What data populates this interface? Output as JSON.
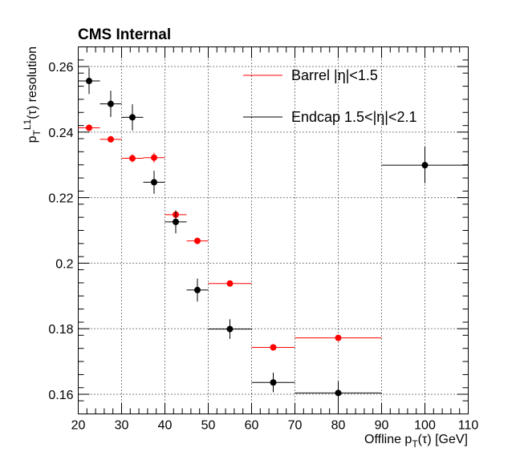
{
  "chart_data": {
    "type": "scatter",
    "title": "CMS Internal",
    "xlabel": "Offline p_T(τ) [GeV]",
    "ylabel": "p_T^L1(τ) resolution",
    "xlim": [
      20,
      110
    ],
    "ylim": [
      0.154,
      0.266
    ],
    "x_ticks": [
      20,
      30,
      40,
      50,
      60,
      70,
      80,
      90,
      100,
      110
    ],
    "y_ticks": [
      0.16,
      0.18,
      0.2,
      0.22,
      0.24,
      0.26
    ],
    "x_tick_labels": [
      "20",
      "30",
      "40",
      "50",
      "60",
      "70",
      "80",
      "90",
      "100",
      "110"
    ],
    "y_tick_labels": [
      "0.16",
      "0.18",
      "0.2",
      "0.22",
      "0.24",
      "0.26"
    ],
    "grid": true,
    "legend_position": "top-right",
    "series": [
      {
        "name": "Barrel |η|<1.5",
        "color": "#ff0000",
        "points": [
          {
            "x": 22.5,
            "xerr": 2.5,
            "y": 0.2413,
            "yerr": 0.001
          },
          {
            "x": 27.5,
            "xerr": 2.5,
            "y": 0.2378,
            "yerr": 0.001
          },
          {
            "x": 32.5,
            "xerr": 2.5,
            "y": 0.232,
            "yerr": 0.0012
          },
          {
            "x": 37.5,
            "xerr": 2.5,
            "y": 0.2322,
            "yerr": 0.0015
          },
          {
            "x": 42.5,
            "xerr": 2.5,
            "y": 0.2148,
            "yerr": 0.0012
          },
          {
            "x": 47.5,
            "xerr": 2.5,
            "y": 0.2068,
            "yerr": 0.001
          },
          {
            "x": 55,
            "xerr": 5,
            "y": 0.1938,
            "yerr": 0.0008
          },
          {
            "x": 65,
            "xerr": 5,
            "y": 0.1743,
            "yerr": 0.0008
          },
          {
            "x": 80,
            "xerr": 10,
            "y": 0.1772,
            "yerr": 0.0009
          }
        ]
      },
      {
        "name": "Endcap 1.5<|η|<2.1",
        "color": "#000000",
        "points": [
          {
            "x": 22.5,
            "xerr": 2.5,
            "y": 0.2556,
            "yerr": 0.004
          },
          {
            "x": 27.5,
            "xerr": 2.5,
            "y": 0.2486,
            "yerr": 0.004
          },
          {
            "x": 32.5,
            "xerr": 2.5,
            "y": 0.2445,
            "yerr": 0.004
          },
          {
            "x": 37.5,
            "xerr": 2.5,
            "y": 0.2247,
            "yerr": 0.0035
          },
          {
            "x": 42.5,
            "xerr": 2.5,
            "y": 0.2126,
            "yerr": 0.0035
          },
          {
            "x": 47.5,
            "xerr": 2.5,
            "y": 0.1918,
            "yerr": 0.0035
          },
          {
            "x": 55,
            "xerr": 5,
            "y": 0.1799,
            "yerr": 0.003
          },
          {
            "x": 65,
            "xerr": 5,
            "y": 0.1636,
            "yerr": 0.003
          },
          {
            "x": 80,
            "xerr": 10,
            "y": 0.1604,
            "yerr": 0.0035
          },
          {
            "x": 100,
            "xerr": 10,
            "y": 0.2299,
            "yerr": 0.0055
          }
        ]
      }
    ]
  }
}
